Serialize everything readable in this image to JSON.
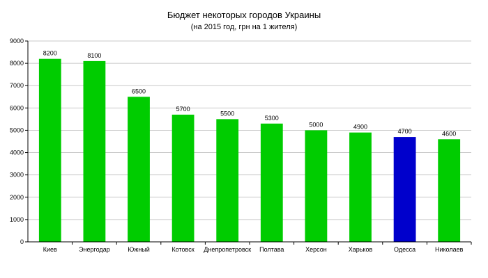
{
  "chart_data": {
    "type": "bar",
    "title": "Бюджет некоторых городов Украины",
    "subtitle": "(на 2015 год, грн на 1 жителя)",
    "xlabel": "",
    "ylabel": "",
    "ylim": [
      0,
      9000
    ],
    "ytick_step": 1000,
    "grid": true,
    "legend": "none",
    "categories": [
      "Киев",
      "Энергодар",
      "Южный",
      "Котовск",
      "Днепропетровск",
      "Полтава",
      "Херсон",
      "Харьков",
      "Одесса",
      "Николаев"
    ],
    "values": [
      8200,
      8100,
      6500,
      5700,
      5500,
      5300,
      5000,
      4900,
      4700,
      4600
    ],
    "colors": {
      "default": "#00cc00",
      "highlight": "#0000cc",
      "grid": "#c8c8c8",
      "axis": "#000000"
    },
    "highlight_category": "Одесса"
  }
}
